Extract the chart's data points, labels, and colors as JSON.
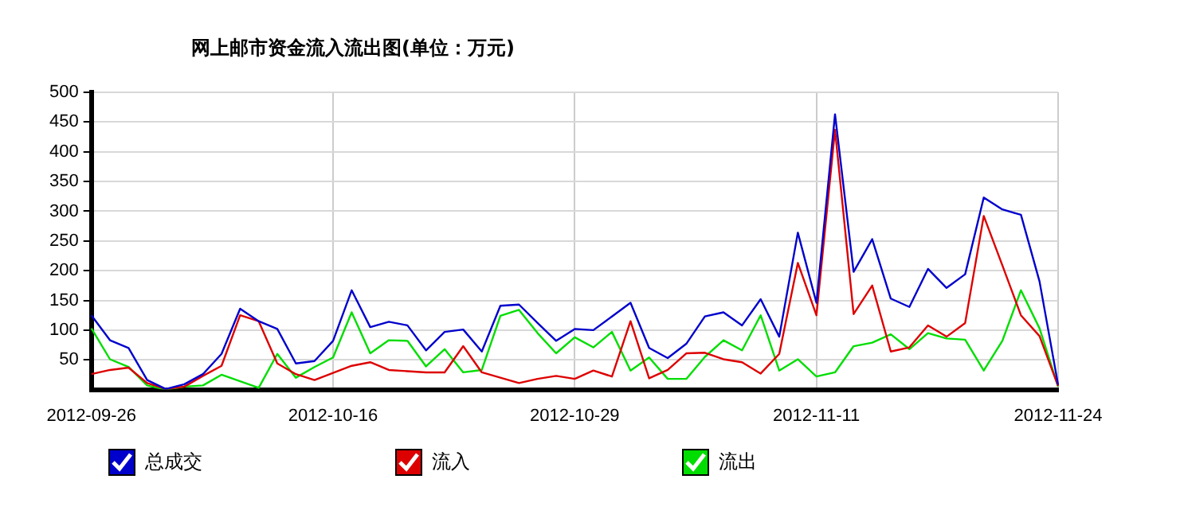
{
  "chart_data": {
    "type": "line",
    "title": "网上邮市资金流入流出图(单位：万元)",
    "categories": [
      "2012-09-26",
      null,
      null,
      null,
      null,
      null,
      null,
      null,
      null,
      null,
      null,
      null,
      null,
      "2012-10-16",
      null,
      null,
      null,
      null,
      null,
      null,
      null,
      null,
      null,
      null,
      null,
      null,
      "2012-10-29",
      null,
      null,
      null,
      null,
      null,
      null,
      null,
      null,
      null,
      null,
      null,
      null,
      "2012-11-11",
      null,
      null,
      null,
      null,
      null,
      null,
      null,
      null,
      null,
      null,
      null,
      null,
      "2012-11-24"
    ],
    "series": [
      {
        "name": "总成交",
        "color": "#0000cc",
        "values": [
          125,
          83,
          70,
          16,
          1,
          9,
          26,
          60,
          136,
          115,
          102,
          44,
          48,
          82,
          167,
          105,
          114,
          108,
          66,
          97,
          101,
          64,
          141,
          143,
          112,
          82,
          102,
          100,
          123,
          146,
          70,
          53,
          77,
          123,
          130,
          108,
          152,
          89,
          264,
          146,
          463,
          198,
          253,
          153,
          139,
          203,
          171,
          194,
          323,
          303,
          294,
          182,
          8
        ]
      },
      {
        "name": "流入",
        "color": "#dd0000",
        "values": [
          26,
          33,
          37,
          11,
          1,
          5,
          23,
          40,
          125,
          115,
          44,
          26,
          16,
          28,
          40,
          46,
          33,
          31,
          29,
          29,
          73,
          29,
          20,
          11,
          18,
          23,
          18,
          32,
          22,
          115,
          19,
          33,
          61,
          62,
          51,
          46,
          27,
          60,
          213,
          125,
          437,
          127,
          175,
          64,
          71,
          108,
          89,
          112,
          292,
          209,
          125,
          90,
          6
        ]
      },
      {
        "name": "流出",
        "color": "#00dd00",
        "values": [
          103,
          51,
          38,
          7,
          0,
          5,
          7,
          25,
          14,
          3,
          60,
          20,
          38,
          54,
          130,
          61,
          83,
          82,
          39,
          68,
          29,
          33,
          124,
          134,
          95,
          61,
          88,
          71,
          97,
          32,
          54,
          18,
          18,
          55,
          83,
          66,
          125,
          32,
          51,
          22,
          29,
          73,
          79,
          93,
          68,
          95,
          86,
          84,
          32,
          82,
          167,
          103,
          5
        ]
      }
    ],
    "ylim": [
      0,
      500
    ],
    "yticks": [
      50,
      100,
      150,
      200,
      250,
      300,
      350,
      400,
      450,
      500
    ],
    "grid": true,
    "legend": "bottom",
    "marker": "none",
    "line_style": "solid"
  }
}
